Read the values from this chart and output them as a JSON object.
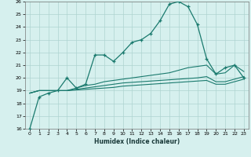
{
  "xlabel": "Humidex (Indice chaleur)",
  "bg_color": "#d6f0ee",
  "grid_color": "#aed4d0",
  "line_color": "#1a7a6e",
  "xlim": [
    -0.5,
    23.5
  ],
  "ylim": [
    16,
    26
  ],
  "xticks": [
    0,
    1,
    2,
    3,
    4,
    5,
    6,
    7,
    8,
    9,
    10,
    11,
    12,
    13,
    14,
    15,
    16,
    17,
    18,
    19,
    20,
    21,
    22,
    23
  ],
  "yticks": [
    16,
    17,
    18,
    19,
    20,
    21,
    22,
    23,
    24,
    25,
    26
  ],
  "line1_x": [
    0,
    1,
    2,
    3,
    4,
    5,
    6,
    7,
    8,
    9,
    10,
    11,
    12,
    13,
    14,
    15,
    16,
    17,
    18,
    19,
    20,
    21,
    22,
    23
  ],
  "line1_y": [
    16.0,
    18.5,
    18.8,
    19.0,
    20.0,
    19.2,
    19.5,
    21.8,
    21.8,
    21.3,
    22.0,
    22.8,
    23.0,
    23.5,
    24.5,
    25.8,
    26.0,
    25.6,
    24.2,
    21.5,
    20.3,
    20.8,
    21.0,
    20.0
  ],
  "line2_x": [
    0,
    1,
    2,
    3,
    4,
    5,
    6,
    7,
    8,
    9,
    10,
    11,
    12,
    13,
    14,
    15,
    16,
    17,
    18,
    19,
    20,
    21,
    22,
    23
  ],
  "line2_y": [
    18.8,
    19.0,
    19.0,
    19.0,
    19.0,
    19.2,
    19.4,
    19.5,
    19.7,
    19.8,
    19.9,
    20.0,
    20.1,
    20.2,
    20.3,
    20.4,
    20.6,
    20.8,
    20.9,
    21.0,
    20.3,
    20.4,
    21.0,
    20.5
  ],
  "line3_x": [
    0,
    1,
    2,
    3,
    4,
    5,
    6,
    7,
    8,
    9,
    10,
    11,
    12,
    13,
    14,
    15,
    16,
    17,
    18,
    19,
    20,
    21,
    22,
    23
  ],
  "line3_y": [
    18.8,
    19.0,
    19.0,
    19.0,
    19.0,
    19.1,
    19.2,
    19.3,
    19.4,
    19.5,
    19.6,
    19.65,
    19.7,
    19.75,
    19.8,
    19.85,
    19.9,
    19.95,
    20.0,
    20.1,
    19.7,
    19.7,
    19.9,
    20.1
  ],
  "line4_x": [
    0,
    1,
    2,
    3,
    4,
    5,
    6,
    7,
    8,
    9,
    10,
    11,
    12,
    13,
    14,
    15,
    16,
    17,
    18,
    19,
    20,
    21,
    22,
    23
  ],
  "line4_y": [
    18.8,
    19.0,
    19.0,
    19.0,
    19.0,
    19.05,
    19.1,
    19.15,
    19.2,
    19.25,
    19.35,
    19.4,
    19.45,
    19.5,
    19.55,
    19.6,
    19.65,
    19.7,
    19.75,
    19.8,
    19.5,
    19.5,
    19.7,
    19.9
  ]
}
